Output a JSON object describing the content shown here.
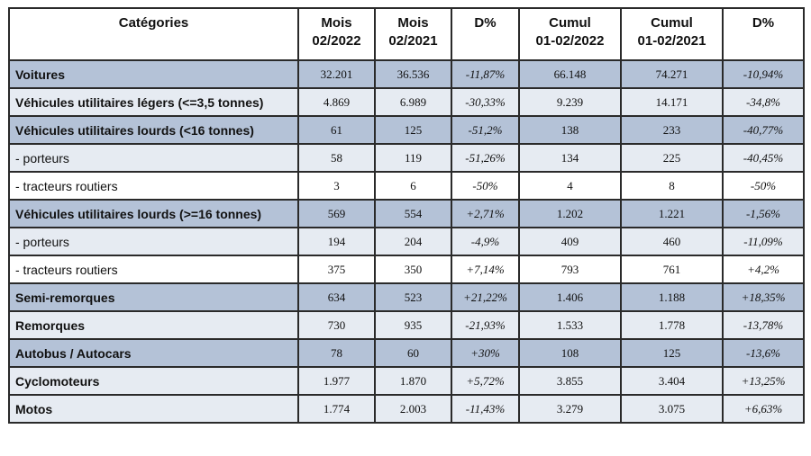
{
  "table": {
    "headers": [
      {
        "l1": "Catégories",
        "l2": ""
      },
      {
        "l1": "Mois",
        "l2": "02/2022"
      },
      {
        "l1": "Mois",
        "l2": "02/2021"
      },
      {
        "l1": "",
        "l2": "D%"
      },
      {
        "l1": "Cumul",
        "l2": "01-02/2022"
      },
      {
        "l1": "Cumul",
        "l2": "01-02/2021"
      },
      {
        "l1": "",
        "l2": "D%"
      }
    ],
    "rows": [
      {
        "style": "hl",
        "cells": [
          "Voitures",
          "32.201",
          "36.536",
          "-11,87%",
          "66.148",
          "74.271",
          "-10,94%"
        ]
      },
      {
        "style": "norm bold",
        "cells": [
          "Véhicules utilitaires légers (<=3,5 tonnes)",
          "4.869",
          "6.989",
          "-30,33%",
          "9.239",
          "14.171",
          "-34,8%"
        ]
      },
      {
        "style": "hl",
        "cells": [
          "Véhicules utilitaires lourds (<16 tonnes)",
          "61",
          "125",
          "-51,2%",
          "138",
          "233",
          "-40,77%"
        ]
      },
      {
        "style": "norm sub",
        "cells": [
          "- porteurs",
          "58",
          "119",
          "-51,26%",
          "134",
          "225",
          "-40,45%"
        ]
      },
      {
        "style": "white sub",
        "cells": [
          "- tracteurs routiers",
          "3",
          "6",
          "-50%",
          "4",
          "8",
          "-50%"
        ]
      },
      {
        "style": "hl",
        "cells": [
          "Véhicules utilitaires lourds (>=16 tonnes)",
          "569",
          "554",
          "+2,71%",
          "1.202",
          "1.221",
          "-1,56%"
        ]
      },
      {
        "style": "norm sub",
        "cells": [
          "- porteurs",
          "194",
          "204",
          "-4,9%",
          "409",
          "460",
          "-11,09%"
        ]
      },
      {
        "style": "white sub",
        "cells": [
          "- tracteurs routiers",
          "375",
          "350",
          "+7,14%",
          "793",
          "761",
          "+4,2%"
        ]
      },
      {
        "style": "hl",
        "cells": [
          "Semi-remorques",
          "634",
          "523",
          "+21,22%",
          "1.406",
          "1.188",
          "+18,35%"
        ]
      },
      {
        "style": "norm bold",
        "cells": [
          "Remorques",
          "730",
          "935",
          "-21,93%",
          "1.533",
          "1.778",
          "-13,78%"
        ]
      },
      {
        "style": "hl",
        "cells": [
          "Autobus / Autocars",
          "78",
          "60",
          "+30%",
          "108",
          "125",
          "-13,6%"
        ]
      },
      {
        "style": "norm bold",
        "cells": [
          "Cyclomoteurs",
          "1.977",
          "1.870",
          "+5,72%",
          "3.855",
          "3.404",
          "+13,25%"
        ]
      },
      {
        "style": "norm bold",
        "cells": [
          "Motos",
          "1.774",
          "2.003",
          "-11,43%",
          "3.279",
          "3.075",
          "+6,63%"
        ]
      }
    ]
  }
}
